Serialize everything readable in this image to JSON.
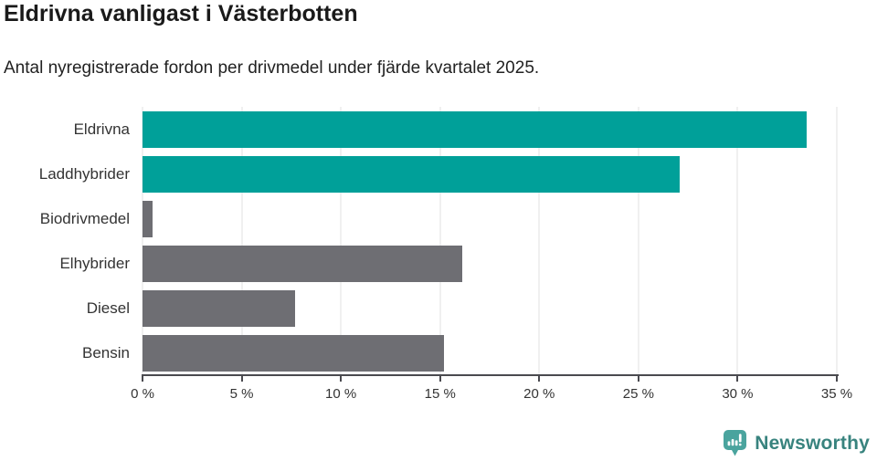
{
  "header": {
    "title": "Eldrivna vanligast i Västerbotten",
    "subtitle": "Antal nyregistrerade fordon per drivmedel under fjärde kvartalet 2025."
  },
  "chart_data": {
    "type": "bar",
    "orientation": "horizontal",
    "title": "Eldrivna vanligast i Västerbotten",
    "xlabel": "",
    "ylabel": "",
    "unit": "%",
    "categories": [
      "Eldrivna",
      "Laddhybrider",
      "Biodrivmedel",
      "Elhybrider",
      "Diesel",
      "Bensin"
    ],
    "values": [
      33.5,
      27.1,
      0.5,
      16.1,
      7.7,
      15.2
    ],
    "bar_colors": [
      "#00a099",
      "#00a099",
      "#6e6e73",
      "#6e6e73",
      "#6e6e73",
      "#6e6e73"
    ],
    "xlim": [
      0,
      35
    ],
    "x_ticks": [
      0,
      5,
      10,
      15,
      20,
      25,
      30,
      35
    ],
    "x_tick_labels": [
      "0 %",
      "5 %",
      "10 %",
      "15 %",
      "20 %",
      "25 %",
      "30 %",
      "35 %"
    ],
    "grid": true,
    "legend": "none"
  },
  "colors": {
    "highlight": "#00a099",
    "muted": "#6e6e73",
    "gridline": "#e2e2e2",
    "axis": "#4a4a4f",
    "tick_text": "#333333"
  },
  "footer": {
    "brand": "Newsworthy",
    "logo_icon": "newsworthy-chart-bubble-icon",
    "icon_color": "#4aa49e",
    "brand_color": "#38837e"
  }
}
